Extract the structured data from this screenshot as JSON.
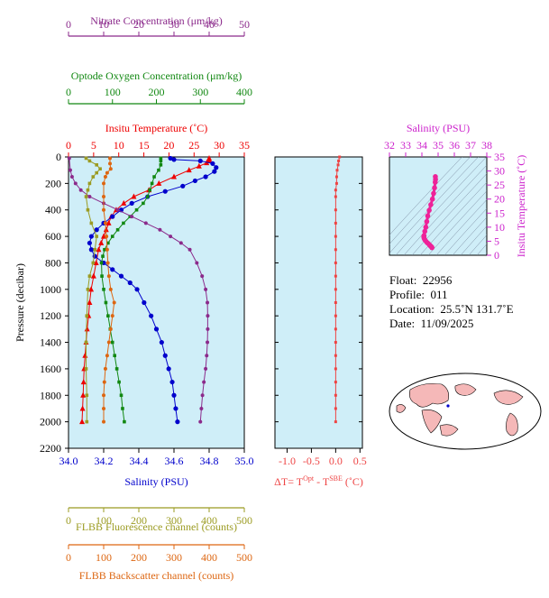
{
  "chart_data": [
    {
      "type": "line",
      "name": "profile-panel",
      "ylabel": "Pressure (decibar)",
      "yticks": [
        "0",
        "200",
        "400",
        "600",
        "800",
        "1000",
        "1200",
        "1400",
        "1600",
        "1800",
        "2000",
        "2200"
      ],
      "ylim": [
        2200,
        0
      ],
      "axes": [
        {
          "key": "nitrate",
          "label": "Nitrate Concentration (μm/kg)",
          "ticks": [
            "0",
            "10",
            "20",
            "30",
            "40",
            "50"
          ],
          "range": [
            0,
            50
          ],
          "color": "#8b2a8b"
        },
        {
          "key": "oxygen",
          "label": "Optode Oxygen Concentration (μm/kg)",
          "ticks": [
            "0",
            "100",
            "200",
            "300",
            "400"
          ],
          "range": [
            0,
            400
          ],
          "color": "#118811"
        },
        {
          "key": "temperature",
          "label": "Insitu Temperature (˚C)",
          "ticks": [
            "0",
            "5",
            "10",
            "15",
            "20",
            "25",
            "30",
            "35"
          ],
          "range": [
            0,
            35
          ],
          "color": "#ee0000"
        },
        {
          "key": "salinity",
          "label": "Salinity (PSU)",
          "ticks": [
            "34.0",
            "34.2",
            "34.4",
            "34.6",
            "34.8",
            "35.0"
          ],
          "range": [
            34.0,
            35.0
          ],
          "color": "#0000cc"
        },
        {
          "key": "fluorescence",
          "label": "FLBB Fluorescence channel (counts)",
          "ticks": [
            "0",
            "100",
            "200",
            "300",
            "400",
            "500"
          ],
          "range": [
            0,
            500
          ],
          "color": "#9b9b22"
        },
        {
          "key": "backscatter",
          "label": "FLBB Backscatter channel (counts)",
          "ticks": [
            "0",
            "100",
            "200",
            "300",
            "400",
            "500"
          ],
          "range": [
            0,
            500
          ],
          "color": "#dd6611"
        }
      ],
      "series": [
        {
          "key": "temperature",
          "color": "#ee0000",
          "points": [
            [
              28,
              10
            ],
            [
              28,
              20
            ],
            [
              28,
              30
            ],
            [
              27.5,
              45
            ],
            [
              26,
              70
            ],
            [
              24,
              100
            ],
            [
              21,
              150
            ],
            [
              18,
              200
            ],
            [
              16,
              250
            ],
            [
              13,
              300
            ],
            [
              11,
              350
            ],
            [
              9.5,
              400
            ],
            [
              8.5,
              450
            ],
            [
              8,
              500
            ],
            [
              7.5,
              550
            ],
            [
              7,
              600
            ],
            [
              6.5,
              650
            ],
            [
              6,
              700
            ],
            [
              5.5,
              800
            ],
            [
              5,
              900
            ],
            [
              4.5,
              1000
            ],
            [
              4.2,
              1100
            ],
            [
              4,
              1200
            ],
            [
              3.7,
              1300
            ],
            [
              3.5,
              1400
            ],
            [
              3.3,
              1500
            ],
            [
              3.1,
              1600
            ],
            [
              3,
              1700
            ],
            [
              2.9,
              1800
            ],
            [
              2.8,
              1900
            ],
            [
              2.7,
              2000
            ]
          ]
        },
        {
          "key": "salinity",
          "color": "#0000cc",
          "points": [
            [
              34.58,
              10
            ],
            [
              34.6,
              20
            ],
            [
              34.75,
              30
            ],
            [
              34.82,
              50
            ],
            [
              34.84,
              80
            ],
            [
              34.83,
              110
            ],
            [
              34.78,
              150
            ],
            [
              34.72,
              180
            ],
            [
              34.65,
              220
            ],
            [
              34.55,
              260
            ],
            [
              34.45,
              300
            ],
            [
              34.36,
              350
            ],
            [
              34.3,
              400
            ],
            [
              34.25,
              450
            ],
            [
              34.2,
              500
            ],
            [
              34.16,
              550
            ],
            [
              34.13,
              600
            ],
            [
              34.12,
              650
            ],
            [
              34.13,
              700
            ],
            [
              34.15,
              750
            ],
            [
              34.2,
              800
            ],
            [
              34.25,
              850
            ],
            [
              34.3,
              900
            ],
            [
              34.35,
              950
            ],
            [
              34.39,
              1000
            ],
            [
              34.43,
              1100
            ],
            [
              34.47,
              1200
            ],
            [
              34.5,
              1300
            ],
            [
              34.53,
              1400
            ],
            [
              34.55,
              1500
            ],
            [
              34.57,
              1600
            ],
            [
              34.59,
              1700
            ],
            [
              34.6,
              1800
            ],
            [
              34.61,
              1900
            ],
            [
              34.62,
              2000
            ]
          ]
        },
        {
          "key": "oxygen",
          "color": "#118811",
          "points": [
            [
              210,
              10
            ],
            [
              210,
              30
            ],
            [
              210,
              60
            ],
            [
              205,
              100
            ],
            [
              195,
              150
            ],
            [
              190,
              200
            ],
            [
              185,
              250
            ],
            [
              180,
              300
            ],
            [
              170,
              350
            ],
            [
              155,
              400
            ],
            [
              140,
              450
            ],
            [
              125,
              500
            ],
            [
              112,
              550
            ],
            [
              100,
              600
            ],
            [
              90,
              650
            ],
            [
              82,
              700
            ],
            [
              78,
              750
            ],
            [
              75,
              800
            ],
            [
              76,
              900
            ],
            [
              80,
              1000
            ],
            [
              85,
              1100
            ],
            [
              90,
              1200
            ],
            [
              95,
              1300
            ],
            [
              100,
              1400
            ],
            [
              105,
              1500
            ],
            [
              110,
              1600
            ],
            [
              115,
              1700
            ],
            [
              120,
              1800
            ],
            [
              123,
              1900
            ],
            [
              127,
              2000
            ]
          ]
        },
        {
          "key": "nitrate",
          "color": "#8b2a8b",
          "points": [
            [
              0.2,
              10
            ],
            [
              0.5,
              100
            ],
            [
              1,
              150
            ],
            [
              2,
              200
            ],
            [
              3.5,
              250
            ],
            [
              6,
              300
            ],
            [
              10,
              350
            ],
            [
              14,
              400
            ],
            [
              18,
              450
            ],
            [
              22,
              500
            ],
            [
              26,
              550
            ],
            [
              29,
              600
            ],
            [
              32,
              650
            ],
            [
              34.5,
              700
            ],
            [
              36.5,
              800
            ],
            [
              38,
              900
            ],
            [
              39,
              1000
            ],
            [
              39.5,
              1100
            ],
            [
              39.6,
              1200
            ],
            [
              39.6,
              1300
            ],
            [
              39.5,
              1400
            ],
            [
              39.3,
              1500
            ],
            [
              39,
              1600
            ],
            [
              38.5,
              1700
            ],
            [
              38.1,
              1800
            ],
            [
              37.8,
              1900
            ],
            [
              37.5,
              2000
            ]
          ]
        },
        {
          "key": "fluorescence",
          "color": "#9b9b22",
          "points": [
            [
              50,
              10
            ],
            [
              60,
              30
            ],
            [
              80,
              60
            ],
            [
              90,
              90
            ],
            [
              80,
              120
            ],
            [
              70,
              150
            ],
            [
              60,
              200
            ],
            [
              55,
              250
            ],
            [
              50,
              300
            ],
            [
              55,
              400
            ],
            [
              65,
              500
            ],
            [
              80,
              600
            ],
            [
              75,
              700
            ],
            [
              70,
              800
            ],
            [
              60,
              900
            ],
            [
              55,
              1000
            ],
            [
              52,
              1200
            ],
            [
              50,
              1400
            ],
            [
              50,
              1600
            ],
            [
              52,
              1800
            ],
            [
              52,
              2000
            ]
          ]
        },
        {
          "key": "backscatter",
          "color": "#dd6611",
          "points": [
            [
              118,
              10
            ],
            [
              118,
              50
            ],
            [
              120,
              90
            ],
            [
              110,
              120
            ],
            [
              105,
              150
            ],
            [
              100,
              200
            ],
            [
              100,
              300
            ],
            [
              100,
              400
            ],
            [
              105,
              500
            ],
            [
              108,
              600
            ],
            [
              110,
              700
            ],
            [
              112,
              800
            ],
            [
              115,
              900
            ],
            [
              120,
              1000
            ],
            [
              130,
              1100
            ],
            [
              125,
              1200
            ],
            [
              120,
              1300
            ],
            [
              115,
              1400
            ],
            [
              110,
              1500
            ],
            [
              105,
              1600
            ],
            [
              102,
              1700
            ],
            [
              100,
              1800
            ],
            [
              100,
              1900
            ],
            [
              100,
              2000
            ]
          ]
        }
      ]
    },
    {
      "type": "line",
      "name": "delta-t-panel",
      "xlabel": "ΔT= T",
      "xlabel_sup1": "Opt",
      "xlabel_mid": " - T",
      "xlabel_sup2": "SBE",
      "xlabel_end": " (˚C)",
      "xticks": [
        "-1.0",
        "-0.5",
        "0.0",
        "0.5"
      ],
      "xlim": [
        -1.25,
        0.55
      ],
      "color": "#ee4444",
      "points": [
        [
          0.08,
          0
        ],
        [
          0.06,
          30
        ],
        [
          0.05,
          60
        ],
        [
          0.03,
          100
        ],
        [
          0.02,
          150
        ],
        [
          0.02,
          200
        ],
        [
          0,
          250
        ],
        [
          0,
          300
        ],
        [
          0,
          400
        ],
        [
          0,
          500
        ],
        [
          0,
          600
        ],
        [
          0,
          700
        ],
        [
          0,
          800
        ],
        [
          0,
          900
        ],
        [
          0,
          1000
        ],
        [
          0,
          1100
        ],
        [
          0,
          1200
        ],
        [
          0,
          1300
        ],
        [
          0,
          1400
        ],
        [
          0,
          1500
        ],
        [
          0,
          1600
        ],
        [
          0,
          1700
        ],
        [
          0,
          1800
        ],
        [
          0,
          1900
        ],
        [
          0,
          2000
        ]
      ]
    },
    {
      "type": "scatter",
      "name": "ts-panel",
      "xlabel": "Salinity (PSU)",
      "ylabel": "Insitu Temperature (˚C)",
      "xticks": [
        "32",
        "33",
        "34",
        "35",
        "36",
        "37",
        "38"
      ],
      "yticks": [
        "0",
        "5",
        "10",
        "15",
        "20",
        "25",
        "30",
        "35"
      ],
      "xlim": [
        32,
        38
      ],
      "ylim": [
        0,
        35
      ],
      "color": "#ee2299",
      "points": [
        [
          34.83,
          28
        ],
        [
          34.84,
          27
        ],
        [
          34.82,
          26
        ],
        [
          34.78,
          24
        ],
        [
          34.72,
          22
        ],
        [
          34.65,
          20
        ],
        [
          34.55,
          18
        ],
        [
          34.45,
          16
        ],
        [
          34.36,
          14
        ],
        [
          34.3,
          12
        ],
        [
          34.24,
          10
        ],
        [
          34.18,
          8.5
        ],
        [
          34.13,
          7
        ],
        [
          34.12,
          6.5
        ],
        [
          34.14,
          6
        ],
        [
          34.18,
          5.5
        ],
        [
          34.25,
          5
        ],
        [
          34.32,
          4.5
        ],
        [
          34.39,
          4.2
        ],
        [
          34.45,
          3.8
        ],
        [
          34.5,
          3.5
        ],
        [
          34.55,
          3.2
        ],
        [
          34.59,
          3
        ],
        [
          34.61,
          2.8
        ],
        [
          34.62,
          2.7
        ]
      ]
    }
  ],
  "info": {
    "float_label": "Float:",
    "float_value": "22956",
    "profile_label": "Profile:",
    "profile_value": "011",
    "location_label": "Location:",
    "location_value": "25.5˚N  131.7˚E",
    "date_label": "Date:",
    "date_value": "11/09/2025"
  },
  "map": {
    "ocean_color": "#ffffff",
    "land_color": "#f5b8b8",
    "marker_color": "#0000cc"
  }
}
